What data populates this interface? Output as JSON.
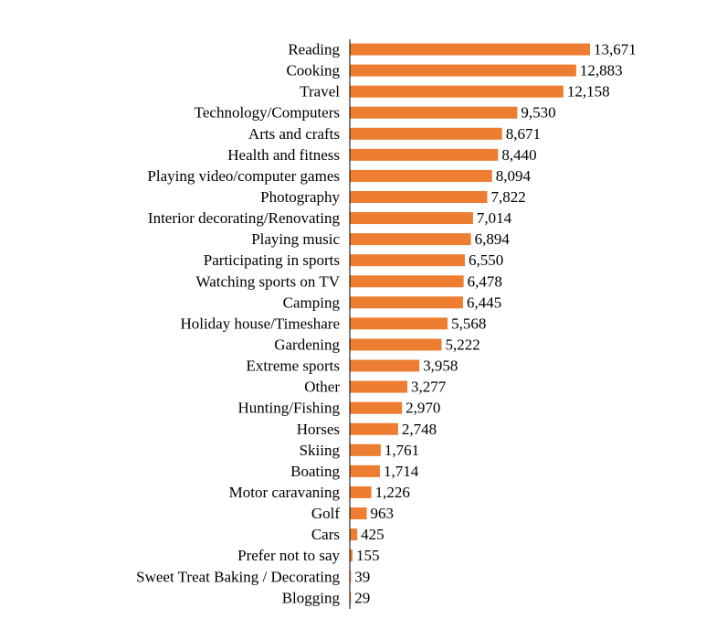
{
  "chart_data": {
    "type": "bar",
    "orientation": "horizontal",
    "categories": [
      "Reading",
      "Cooking",
      "Travel",
      "Technology/Computers",
      "Arts and crafts",
      "Health and fitness",
      "Playing video/computer games",
      "Photography",
      "Interior decorating/Renovating",
      "Playing music",
      "Participating in sports",
      "Watching sports on TV",
      "Camping",
      "Holiday house/Timeshare",
      "Gardening",
      "Extreme sports",
      "Other",
      "Hunting/Fishing",
      "Horses",
      "Skiing",
      "Boating",
      "Motor caravaning",
      "Golf",
      "Cars",
      "Prefer not to say",
      "Sweet Treat Baking / Decorating",
      "Blogging"
    ],
    "values": [
      13671,
      12883,
      12158,
      9530,
      8671,
      8440,
      8094,
      7822,
      7014,
      6894,
      6550,
      6478,
      6445,
      5568,
      5222,
      3958,
      3277,
      2970,
      2748,
      1761,
      1714,
      1226,
      963,
      425,
      155,
      39,
      29
    ],
    "value_labels": [
      "13,671",
      "12,883",
      "12,158",
      "9,530",
      "8,671",
      "8,440",
      "8,094",
      "7,822",
      "7,014",
      "6,894",
      "6,550",
      "6,478",
      "6,445",
      "5,568",
      "5,222",
      "3,958",
      "3,277",
      "2,970",
      "2,748",
      "1,761",
      "1,714",
      "1,226",
      "963",
      "425",
      "155",
      "39",
      "29"
    ],
    "title": "",
    "xlabel": "",
    "ylabel": "",
    "xlim": [
      0,
      15000
    ],
    "grid": false,
    "legend": "none",
    "colors": {
      "bar": "#ED7D31",
      "axis": "#000000",
      "text": "#000000"
    }
  }
}
